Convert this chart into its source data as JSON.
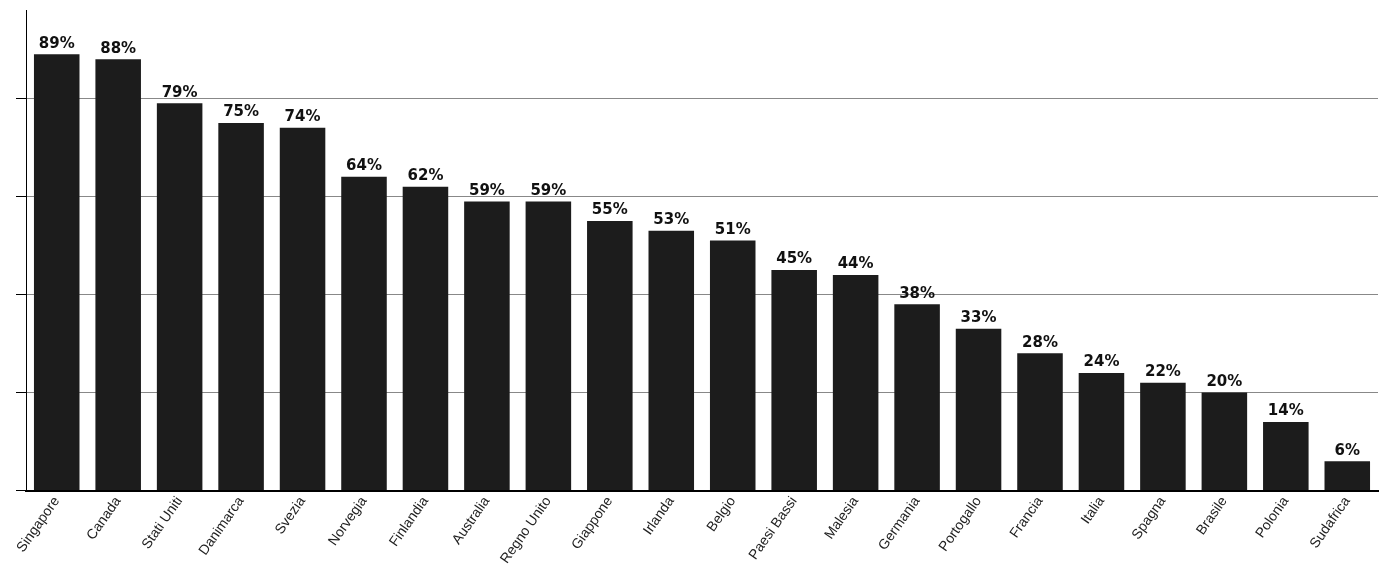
{
  "chart_data": {
    "type": "bar",
    "categories": [
      "Singapore",
      "Canada",
      "Stati Uniti",
      "Danimarca",
      "Svezia",
      "Norvegia",
      "Finlandia",
      "Australia",
      "Regno Unito",
      "Giappone",
      "Irlanda",
      "Belgio",
      "Paesi Bassi",
      "Malesia",
      "Germania",
      "Portogallo",
      "Francia",
      "Italia",
      "Spagna",
      "Brasile",
      "Polonia",
      "Sudafrica"
    ],
    "values": [
      89,
      88,
      79,
      75,
      74,
      64,
      62,
      59,
      59,
      55,
      53,
      51,
      45,
      44,
      38,
      33,
      28,
      24,
      22,
      20,
      14,
      6
    ],
    "value_labels": [
      "89%",
      "88%",
      "79%",
      "75%",
      "74%",
      "64%",
      "62%",
      "59%",
      "59%",
      "55%",
      "53%",
      "51%",
      "45%",
      "44%",
      "38%",
      "33%",
      "28%",
      "24%",
      "22%",
      "20%",
      "14%",
      "6%"
    ],
    "color": "#1c1c1c",
    "ylim": [
      0,
      98
    ],
    "yticks": [
      {
        "value": 0,
        "label": null
      },
      {
        "value": 20,
        "label": null
      },
      {
        "value": 40,
        "label": null
      },
      {
        "value": 60,
        "label": null
      },
      {
        "value": 80,
        "label": null
      }
    ],
    "grid": "y",
    "tick_labels": "x"
  }
}
